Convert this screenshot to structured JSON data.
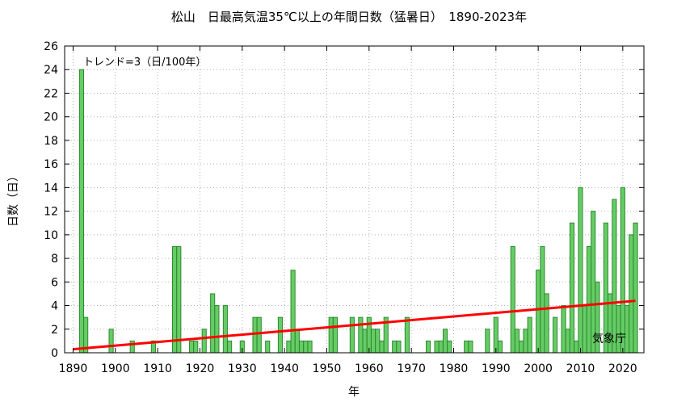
{
  "chart_data": {
    "type": "bar",
    "title": "松山　日最高気温35℃以上の年間日数（猛暑日）　1890-2023年",
    "ylabel": "日数（日）",
    "xlabel": "年",
    "trend_label": "トレンド=3（日/100年）",
    "source_label": "気象庁",
    "xlim": [
      1888,
      2025
    ],
    "ylim": [
      0,
      26
    ],
    "x_ticks": [
      "1890",
      "1900",
      "1910",
      "1920",
      "1930",
      "1940",
      "1950",
      "1960",
      "1970",
      "1980",
      "1990",
      "2000",
      "2010",
      "2020"
    ],
    "y_ticks": [
      "0",
      "2",
      "4",
      "6",
      "8",
      "10",
      "12",
      "14",
      "16",
      "18",
      "20",
      "22",
      "24",
      "26"
    ],
    "grid": true,
    "bar_color": "#66cc66",
    "bar_edge_color": "#2f8a2f",
    "trend_color": "#ff0000",
    "trend": {
      "x": [
        1890,
        2023
      ],
      "y": [
        0.3,
        4.4
      ]
    },
    "x": [
      1892,
      1893,
      1899,
      1904,
      1909,
      1914,
      1915,
      1918,
      1919,
      1921,
      1923,
      1924,
      1926,
      1927,
      1930,
      1933,
      1934,
      1936,
      1939,
      1941,
      1942,
      1943,
      1944,
      1945,
      1946,
      1951,
      1952,
      1956,
      1958,
      1959,
      1960,
      1961,
      1962,
      1963,
      1964,
      1966,
      1967,
      1969,
      1974,
      1976,
      1977,
      1978,
      1979,
      1983,
      1984,
      1988,
      1990,
      1991,
      1994,
      1995,
      1996,
      1997,
      1998,
      2000,
      2001,
      2002,
      2004,
      2006,
      2007,
      2008,
      2009,
      2010,
      2011,
      2012,
      2013,
      2014,
      2016,
      2017,
      2018,
      2019,
      2020,
      2021,
      2022,
      2023
    ],
    "values": [
      24,
      3,
      2,
      1,
      1,
      9,
      9,
      1,
      1,
      2,
      5,
      4,
      4,
      1,
      1,
      3,
      3,
      1,
      3,
      1,
      7,
      2,
      1,
      1,
      1,
      3,
      3,
      3,
      3,
      2,
      3,
      2,
      2,
      1,
      3,
      1,
      1,
      3,
      1,
      1,
      1,
      2,
      1,
      1,
      1,
      2,
      3,
      1,
      9,
      2,
      1,
      2,
      3,
      7,
      9,
      5,
      3,
      4,
      2,
      11,
      1,
      14,
      4,
      9,
      12,
      6,
      11,
      5,
      13,
      4,
      14,
      4,
      10,
      11
    ]
  }
}
